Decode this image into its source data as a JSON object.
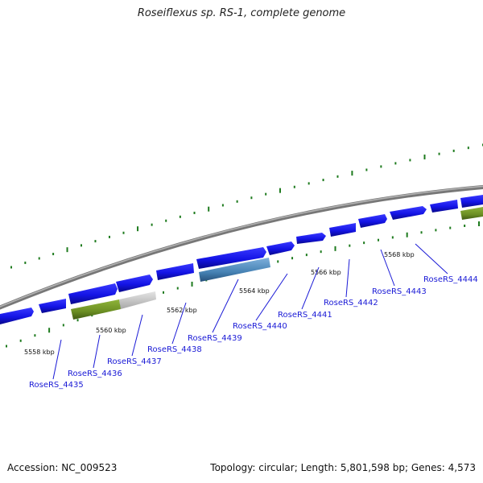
{
  "title": "Roseiflexus sp. RS-1, complete genome",
  "footer": {
    "accession_label": "Accession:",
    "accession": "NC_009523",
    "topology_label": "Topology:",
    "topology": "circular",
    "length_label": "Length:",
    "length": "5,801,598 bp",
    "genes_label": "Genes:",
    "genes": "4,573"
  },
  "colors": {
    "cds": "#1414e6",
    "gene_other": "#6b8e23",
    "pseudo": "#c8c8c8",
    "highlight": "#4682b4",
    "backbone": "#8a8a8a",
    "gc_tick": "#1e7b1e",
    "label": "#1a1ad6"
  },
  "ruler": [
    {
      "text": "5558 kbp"
    },
    {
      "text": "5560 kbp"
    },
    {
      "text": "5562 kbp"
    },
    {
      "text": "5564 kbp"
    },
    {
      "text": "5566 kbp"
    },
    {
      "text": "5568 kbp"
    }
  ],
  "gene_labels": [
    "RoseRS_4435",
    "RoseRS_4436",
    "RoseRS_4437",
    "RoseRS_4438",
    "RoseRS_4439",
    "RoseRS_4440",
    "RoseRS_4441",
    "RoseRS_4442",
    "RoseRS_4443",
    "RoseRS_4444"
  ]
}
